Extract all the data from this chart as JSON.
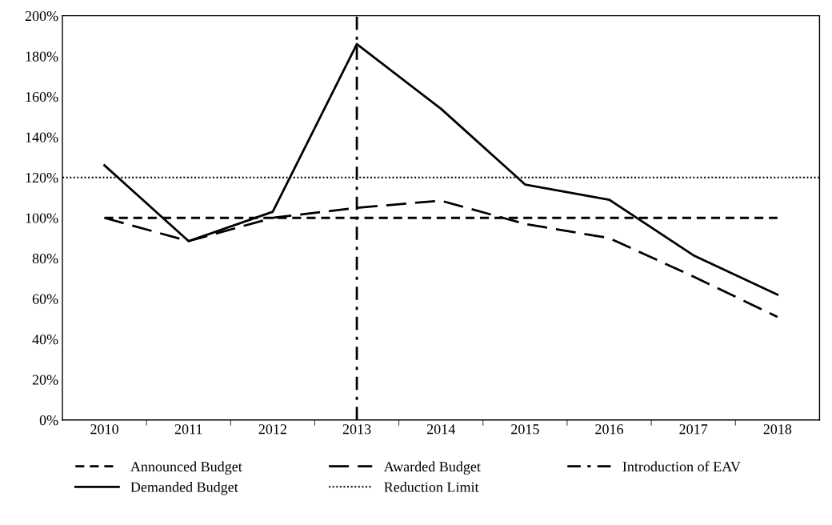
{
  "chart_data": {
    "type": "line",
    "categories": [
      "2010",
      "2011",
      "2012",
      "2013",
      "2014",
      "2015",
      "2016",
      "2017",
      "2018"
    ],
    "series": [
      {
        "name": "Announced Budget",
        "color": "#000000",
        "line_style": "dashed",
        "values": [
          100,
          100,
          100,
          100,
          100,
          100,
          100,
          100,
          100
        ]
      },
      {
        "name": "Demanded Budget",
        "color": "#000000",
        "line_style": "solid",
        "values": [
          126,
          88.5,
          103,
          186,
          154,
          116.5,
          109,
          81.5,
          62
        ]
      },
      {
        "name": "Awarded Budget",
        "color": "#000000",
        "line_style": "long_dashed",
        "values": [
          100,
          88.5,
          100,
          105,
          108.5,
          97,
          90,
          71,
          51
        ]
      }
    ],
    "ref_lines": [
      {
        "axis": "y",
        "value": 120,
        "label": "Reduction Limit",
        "color": "#000000",
        "line_style": "dotted"
      },
      {
        "axis": "x",
        "value": "2013",
        "label": "Introduction of EAV",
        "color": "#000000",
        "line_style": "dashdot"
      }
    ],
    "ylim": [
      0,
      200
    ],
    "yticks": [
      {
        "value": 0,
        "label": "0%"
      },
      {
        "value": 20,
        "label": "20%"
      },
      {
        "value": 40,
        "label": "40%"
      },
      {
        "value": 60,
        "label": "60%"
      },
      {
        "value": 80,
        "label": "80%"
      },
      {
        "value": 100,
        "label": "100%"
      },
      {
        "value": 120,
        "label": "120%"
      },
      {
        "value": 140,
        "label": "140%"
      },
      {
        "value": 160,
        "label": "160%"
      },
      {
        "value": 180,
        "label": "180%"
      },
      {
        "value": 200,
        "label": "200%"
      }
    ],
    "grid": false,
    "legend": "bottom",
    "marker": "none"
  }
}
